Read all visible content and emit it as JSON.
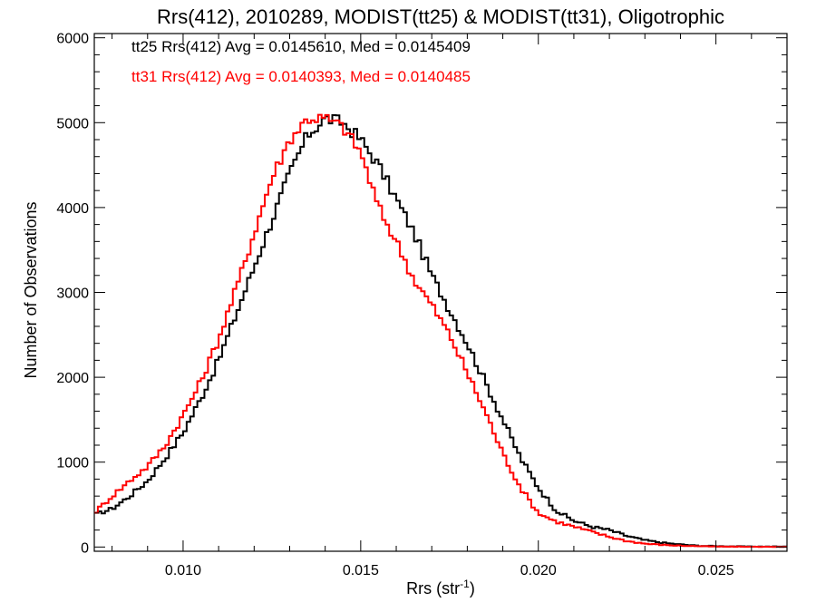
{
  "chart_data": {
    "type": "line",
    "title": "Rrs(412), 2010289, MODIST(tt25) & MODIST(tt31), Oligotrophic",
    "xlabel": "Rrs (str",
    "xlabel_sup": "-1",
    "xlabel_close": ")",
    "ylabel": "Number of Observations",
    "xlim": [
      0.0075,
      0.027
    ],
    "ylim": [
      -50,
      6050
    ],
    "xticks": [
      0.01,
      0.015,
      0.02,
      0.025
    ],
    "xtick_labels": [
      "0.010",
      "0.015",
      "0.020",
      "0.025"
    ],
    "yticks": [
      0,
      1000,
      2000,
      3000,
      4000,
      5000,
      6000
    ],
    "ytick_labels": [
      "0",
      "1000",
      "2000",
      "3000",
      "4000",
      "5000",
      "6000"
    ],
    "grid": false,
    "legend_placement": "top-left",
    "step_style": "histogram",
    "series": [
      {
        "name": "tt25",
        "color": "#000000",
        "legend": "tt25 Rrs(412) Avg = 0.0145610, Med = 0.0145409",
        "x": [
          0.0075,
          0.008,
          0.0085,
          0.009,
          0.0095,
          0.01,
          0.0105,
          0.011,
          0.0115,
          0.012,
          0.0125,
          0.013,
          0.0135,
          0.014,
          0.0145,
          0.015,
          0.0155,
          0.016,
          0.0165,
          0.017,
          0.0175,
          0.018,
          0.0185,
          0.019,
          0.0195,
          0.02,
          0.0205,
          0.021,
          0.0215,
          0.022,
          0.0225,
          0.023,
          0.0235,
          0.024,
          0.0245,
          0.025,
          0.026,
          0.027
        ],
        "y": [
          380,
          450,
          600,
          780,
          1050,
          1350,
          1750,
          2200,
          2750,
          3300,
          3850,
          4400,
          4850,
          5050,
          5000,
          4800,
          4500,
          4100,
          3700,
          3200,
          2800,
          2400,
          1950,
          1500,
          1050,
          700,
          430,
          310,
          240,
          200,
          130,
          80,
          50,
          30,
          15,
          10,
          5,
          5
        ]
      },
      {
        "name": "tt31",
        "color": "#ff0000",
        "legend": "tt31 Rrs(412) Avg = 0.0140393, Med = 0.0140485",
        "x": [
          0.0075,
          0.008,
          0.0085,
          0.009,
          0.0095,
          0.01,
          0.0105,
          0.011,
          0.0115,
          0.012,
          0.0125,
          0.013,
          0.0135,
          0.014,
          0.0145,
          0.015,
          0.0155,
          0.016,
          0.0165,
          0.017,
          0.0175,
          0.018,
          0.0185,
          0.019,
          0.0195,
          0.02,
          0.0205,
          0.021,
          0.0215,
          0.022,
          0.0225,
          0.023,
          0.0235,
          0.024,
          0.0245,
          0.025,
          0.026,
          0.027
        ],
        "y": [
          400,
          600,
          780,
          950,
          1200,
          1550,
          1950,
          2450,
          3050,
          3700,
          4350,
          4800,
          5050,
          5050,
          4950,
          4650,
          4000,
          3600,
          3150,
          2850,
          2500,
          2050,
          1600,
          1100,
          700,
          400,
          300,
          240,
          180,
          120,
          70,
          40,
          25,
          15,
          10,
          5,
          3,
          2
        ]
      }
    ]
  }
}
